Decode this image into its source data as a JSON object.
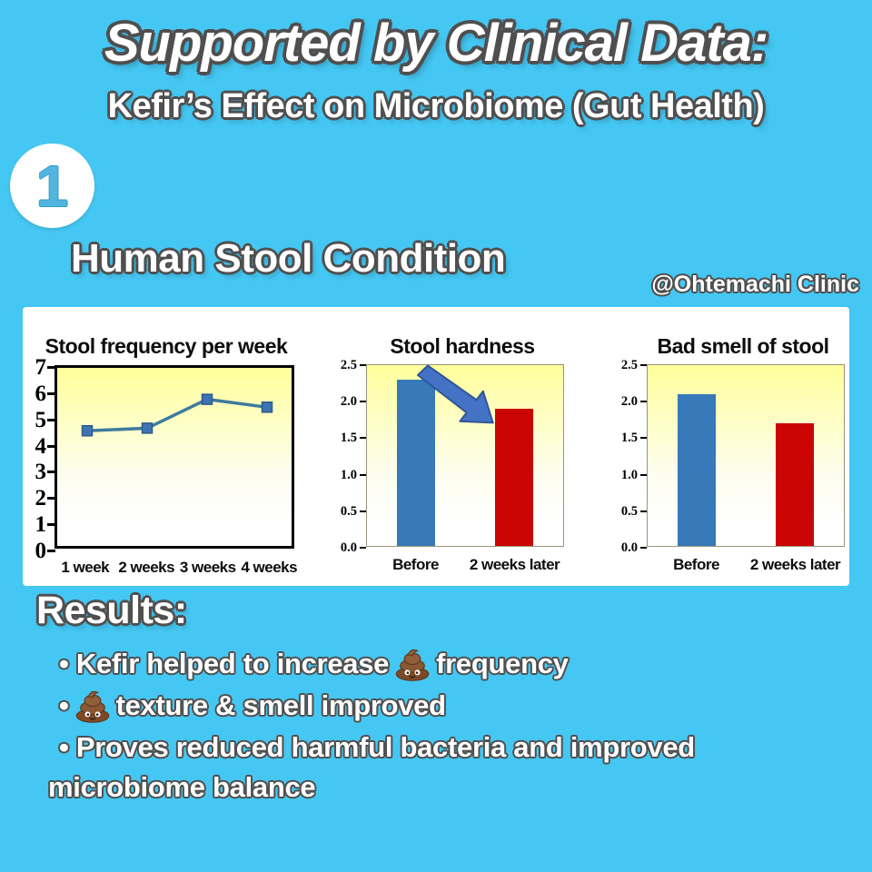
{
  "page": {
    "title": "Supported by Clinical Data:",
    "subtitle": "Kefir’s Effect on Microbiome (Gut Health)",
    "step_number": "1",
    "section_heading": "Human Stool Condition",
    "attribution": "@Ohtemachi Clinic",
    "colors": {
      "background": "#45c7f3",
      "panel": "#ffffff",
      "text_outline": "#4f4f4f",
      "step_number": "#51b5e0",
      "plot_gradient_top": "#ffff9b",
      "plot_gradient_bottom": "#ffffff",
      "arrow_fill": "#4472c4",
      "arrow_edge": "#2f5597"
    }
  },
  "chart_data": [
    {
      "type": "line",
      "title": "Stool frequency per week",
      "categories": [
        "1 week",
        "2 weeks",
        "3 weeks",
        "4 weeks"
      ],
      "values": [
        4.6,
        4.7,
        5.8,
        5.5
      ],
      "ylim": [
        0,
        7
      ],
      "yticks": [
        "7",
        "6",
        "5",
        "4",
        "3",
        "2",
        "1",
        "0"
      ],
      "line_color": "#3e7c9e",
      "marker": "square",
      "marker_color": "#3f74b4",
      "marker_edge": "#2c5a8c",
      "plot_border": "black",
      "grid": false,
      "legend": "none"
    },
    {
      "type": "bar",
      "title": "Stool hardness",
      "categories": [
        "Before",
        "2 weeks later"
      ],
      "values": [
        2.3,
        1.9
      ],
      "bar_colors": [
        "#3779b9",
        "#cb0404"
      ],
      "ylim": [
        0,
        2.5
      ],
      "yticks": [
        "2.5",
        "2.0",
        "1.5",
        "1.0",
        "0.5",
        "0.0"
      ],
      "annotation": "blue arrow pointing down-right toward second bar",
      "grid": false,
      "legend": "none"
    },
    {
      "type": "bar",
      "title": "Bad smell of stool",
      "categories": [
        "Before",
        "2 weeks later"
      ],
      "values": [
        2.1,
        1.7
      ],
      "bar_colors": [
        "#3779b9",
        "#cb0404"
      ],
      "ylim": [
        0,
        2.5
      ],
      "yticks": [
        "2.5",
        "2.0",
        "1.5",
        "1.0",
        "0.5",
        "0.0"
      ],
      "grid": false,
      "legend": "none"
    }
  ],
  "results": {
    "heading": "Results:",
    "bullets": [
      {
        "prefix": "• Kefir helped to increase",
        "icon": "poop-icon",
        "suffix": "frequency"
      },
      {
        "prefix": "•",
        "icon": "poop-icon",
        "suffix": "texture & smell improved"
      },
      {
        "prefix": "• Proves reduced harmful bacteria and improved microbiome balance",
        "icon": null,
        "suffix": ""
      }
    ]
  }
}
